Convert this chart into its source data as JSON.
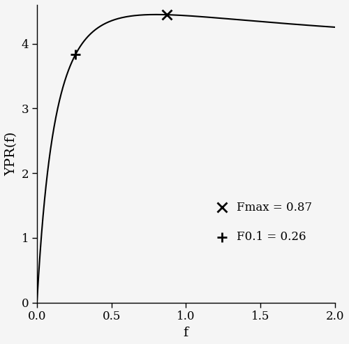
{
  "xlabel": "f",
  "ylabel": "YPR(f)",
  "xlim": [
    0.0,
    2.0
  ],
  "ylim": [
    0.0,
    4.6
  ],
  "xticks": [
    0.0,
    0.5,
    1.0,
    1.5,
    2.0
  ],
  "yticks": [
    0,
    1,
    2,
    3,
    4
  ],
  "Fmax": 0.87,
  "F01": 0.26,
  "line_color": "#000000",
  "marker_color": "#000000",
  "background_color": "#f5f5f5",
  "ypr_peak": 4.45,
  "ypr_at_fmax": 4.45,
  "ypr_at_f01": 3.88
}
